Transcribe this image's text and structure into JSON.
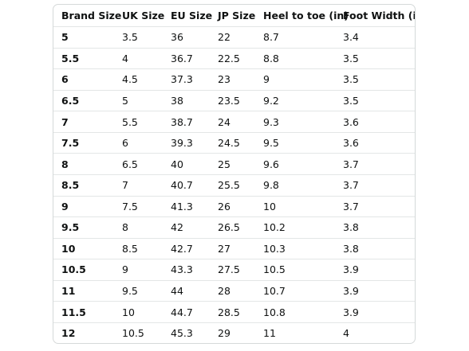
{
  "table": {
    "header": [
      "Brand Size",
      "UK Size",
      "EU Size",
      "JP Size",
      "Heel to toe (in)",
      "Foot Width (in)"
    ],
    "rows": [
      [
        "5",
        "3.5",
        "36",
        "22",
        "8.7",
        "3.4"
      ],
      [
        "5.5",
        "4",
        "36.7",
        "22.5",
        "8.8",
        "3.5"
      ],
      [
        "6",
        "4.5",
        "37.3",
        "23",
        "9",
        "3.5"
      ],
      [
        "6.5",
        "5",
        "38",
        "23.5",
        "9.2",
        "3.5"
      ],
      [
        "7",
        "5.5",
        "38.7",
        "24",
        "9.3",
        "3.6"
      ],
      [
        "7.5",
        "6",
        "39.3",
        "24.5",
        "9.5",
        "3.6"
      ],
      [
        "8",
        "6.5",
        "40",
        "25",
        "9.6",
        "3.7"
      ],
      [
        "8.5",
        "7",
        "40.7",
        "25.5",
        "9.8",
        "3.7"
      ],
      [
        "9",
        "7.5",
        "41.3",
        "26",
        "10",
        "3.7"
      ],
      [
        "9.5",
        "8",
        "42",
        "26.5",
        "10.2",
        "3.8"
      ],
      [
        "10",
        "8.5",
        "42.7",
        "27",
        "10.3",
        "3.8"
      ],
      [
        "10.5",
        "9",
        "43.3",
        "27.5",
        "10.5",
        "3.9"
      ],
      [
        "11",
        "9.5",
        "44",
        "28",
        "10.7",
        "3.9"
      ],
      [
        "11.5",
        "10",
        "44.7",
        "28.5",
        "10.8",
        "3.9"
      ],
      [
        "12",
        "10.5",
        "45.3",
        "29",
        "11",
        "4"
      ]
    ]
  }
}
